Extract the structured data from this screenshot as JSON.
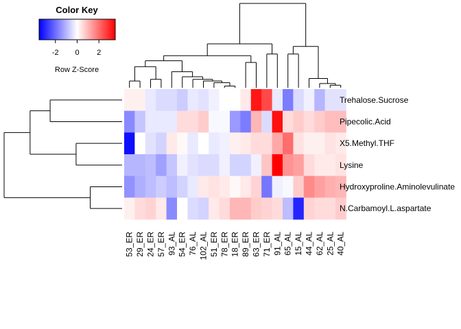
{
  "chart_data": {
    "type": "heatmap",
    "color_key": {
      "title": "Color Key",
      "label": "Row Z-Score",
      "ticks": [
        -2,
        0,
        2
      ],
      "range": [
        -3.5,
        3.5
      ],
      "low_color": "#0000ff",
      "mid_color": "#ffffff",
      "high_color": "#ff0000"
    },
    "rows": [
      "Trehalose.Sucrose",
      "Pipecolic.Acid",
      "X5.Methyl.THF",
      "Lysine",
      "Hydroxyproline.Aminolevulinate",
      "N.Carbamoyl.L.aspartate"
    ],
    "columns": [
      "53_ER",
      "29_ER",
      "24_ER",
      "57_ER",
      "93_AL",
      "54_ER",
      "76_AL",
      "102_AL",
      "51_ER",
      "78_ER",
      "18_ER",
      "89_ER",
      "63_ER",
      "71_ER",
      "91_AL",
      "65_AL",
      "15_AL",
      "44_AL",
      "62_AL",
      "25_AL",
      "40_AL"
    ],
    "values": [
      [
        0.2,
        0.2,
        -0.3,
        -0.5,
        -0.5,
        -0.7,
        -0.3,
        -0.4,
        -0.2,
        0.0,
        0.0,
        0.3,
        3.2,
        2.5,
        -0.3,
        -1.8,
        -0.5,
        -0.2,
        -1.0,
        -0.4,
        -0.4
      ],
      [
        -1.6,
        -0.8,
        -0.3,
        -0.3,
        -0.3,
        0.5,
        0.5,
        0.7,
        -0.1,
        -0.1,
        -1.4,
        -1.8,
        1.0,
        -0.5,
        3.3,
        0.5,
        0.7,
        0.5,
        0.7,
        0.9,
        0.9
      ],
      [
        -3.3,
        0.0,
        -0.4,
        -0.6,
        0.3,
        0.1,
        -0.3,
        0.0,
        -0.3,
        -0.2,
        0.2,
        0.3,
        0.5,
        0.5,
        1.2,
        2.0,
        0.4,
        0.2,
        0.2,
        0.4,
        0.3
      ],
      [
        -1.0,
        -1.0,
        -0.9,
        -1.3,
        -0.8,
        -0.2,
        -0.4,
        -0.5,
        -0.5,
        -0.2,
        -0.6,
        -0.6,
        -0.2,
        0.8,
        3.5,
        1.5,
        1.3,
        0.5,
        0.3,
        0.3,
        0.4
      ],
      [
        -1.5,
        -1.1,
        -0.9,
        -0.7,
        -0.9,
        -0.6,
        -0.3,
        0.3,
        0.4,
        0.3,
        0.1,
        0.3,
        0.6,
        -1.9,
        -0.2,
        -0.1,
        0.7,
        1.6,
        1.3,
        1.1,
        1.0
      ],
      [
        0.2,
        0.5,
        0.6,
        0.3,
        -1.6,
        0.0,
        -0.5,
        -0.6,
        0.3,
        0.5,
        1.0,
        1.0,
        0.7,
        0.6,
        0.5,
        -0.9,
        -3.0,
        0.6,
        0.5,
        0.5,
        0.7
      ]
    ]
  }
}
